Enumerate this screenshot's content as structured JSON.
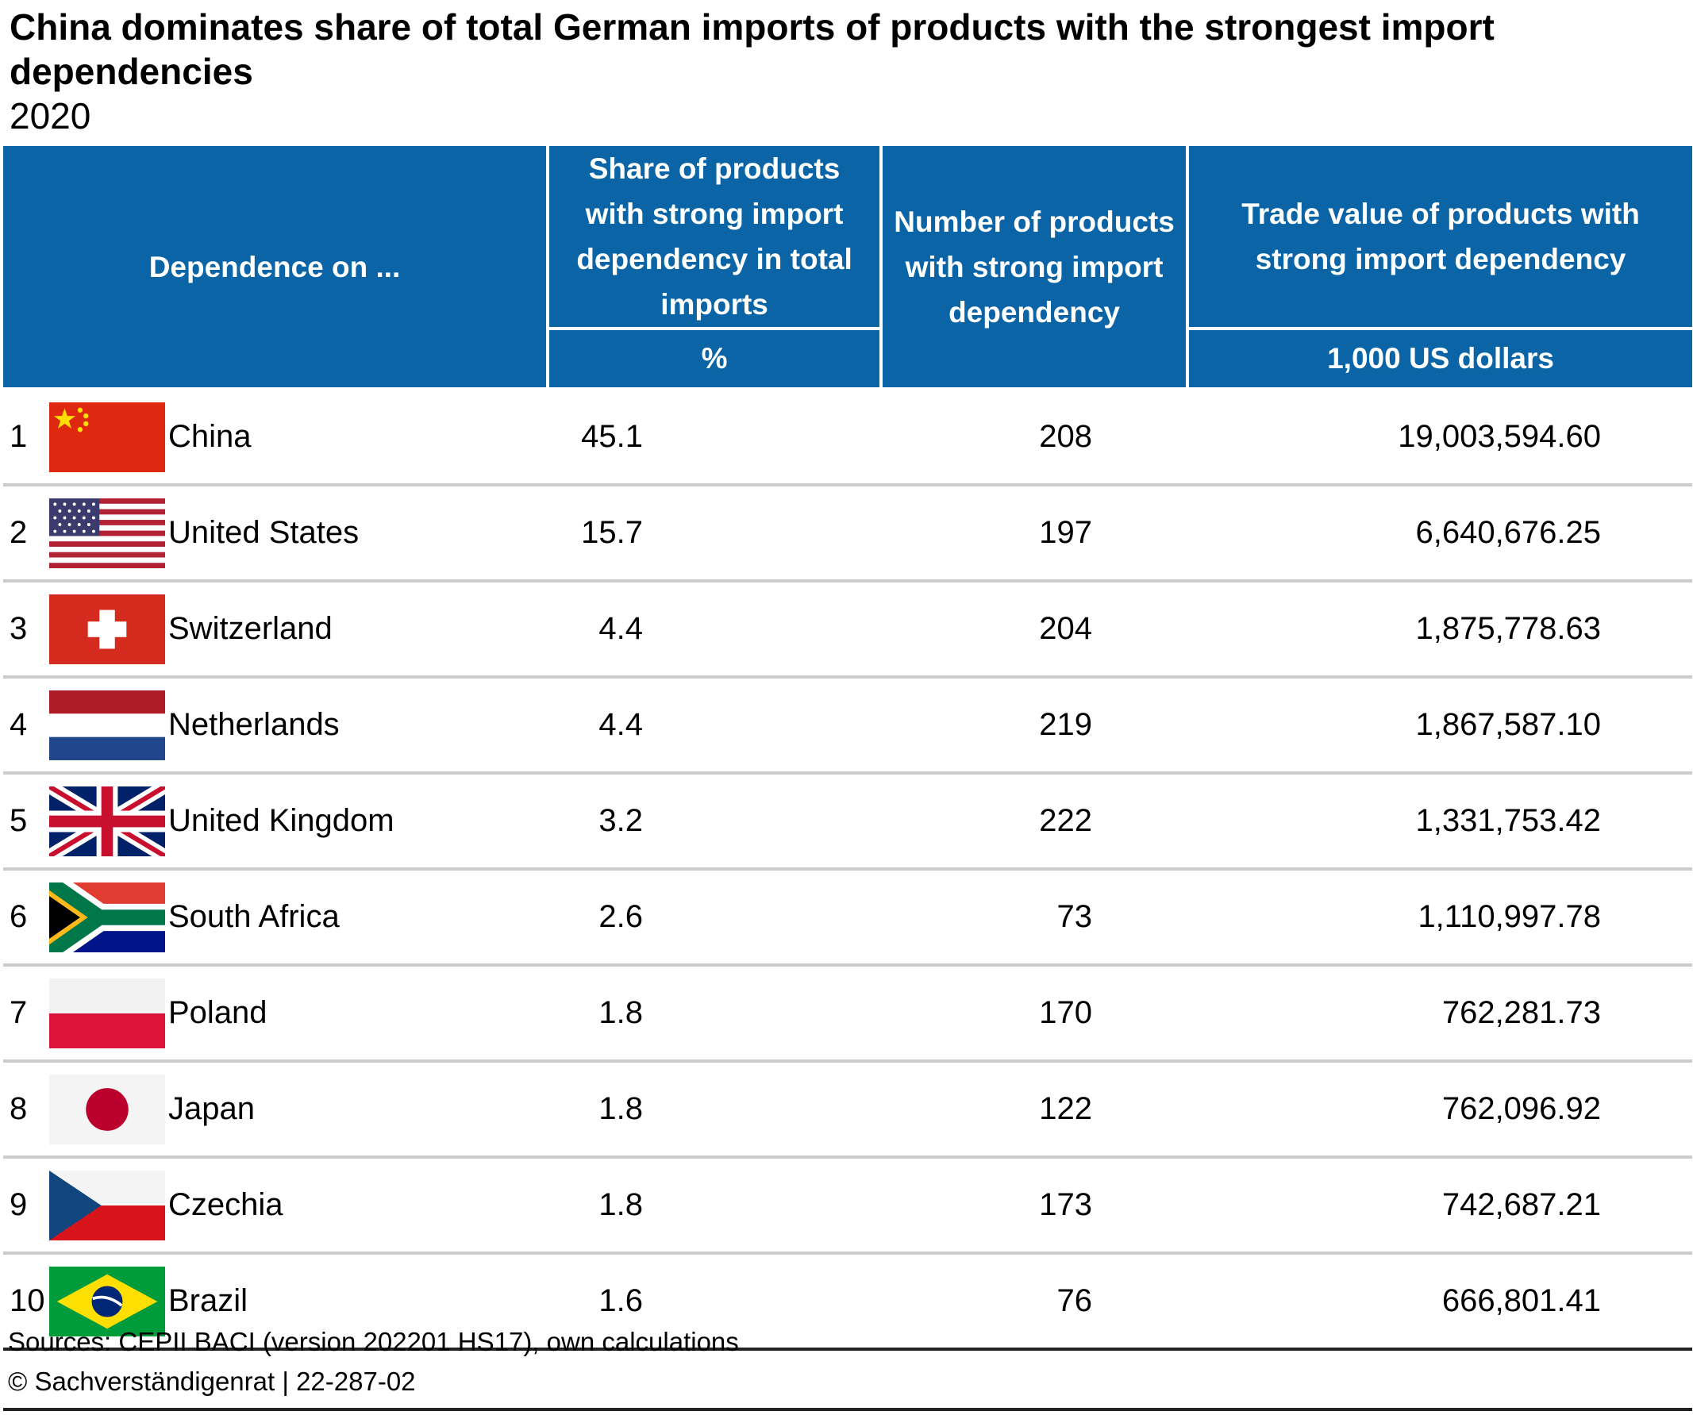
{
  "title": "China dominates share of total German imports of products with the strongest import dependencies",
  "subtitle": "2020",
  "headers": {
    "dependence": "Dependence on ...",
    "share": "Share of products with strong import dependency in total imports",
    "share_unit": "%",
    "count": "Number of products with strong import dependency",
    "value": "Trade value of products with strong import dependency",
    "value_unit": "1,000 US dollars"
  },
  "chart_data": {
    "type": "table",
    "title": "China dominates share of total German imports of products with the strongest import dependencies",
    "subtitle": "2020",
    "columns": [
      "Dependence on ...",
      "Share of products with strong import dependency in total imports (%)",
      "Number of products with strong import dependency",
      "Trade value of products with strong import dependency (1,000 US dollars)"
    ],
    "rows": [
      {
        "rank": "1",
        "country": "China",
        "flag": "flag-china",
        "share": "45.1",
        "count": "208",
        "value": "19,003,594.60"
      },
      {
        "rank": "2",
        "country": "United States",
        "flag": "flag-united-states",
        "share": "15.7",
        "count": "197",
        "value": "6,640,676.25"
      },
      {
        "rank": "3",
        "country": "Switzerland",
        "flag": "flag-switzerland",
        "share": "4.4",
        "count": "204",
        "value": "1,875,778.63"
      },
      {
        "rank": "4",
        "country": "Netherlands",
        "flag": "flag-netherlands",
        "share": "4.4",
        "count": "219",
        "value": "1,867,587.10"
      },
      {
        "rank": "5",
        "country": "United Kingdom",
        "flag": "flag-united-kingdom",
        "share": "3.2",
        "count": "222",
        "value": "1,331,753.42"
      },
      {
        "rank": "6",
        "country": "South Africa",
        "flag": "flag-south-africa",
        "share": "2.6",
        "count": "73",
        "value": "1,110,997.78"
      },
      {
        "rank": "7",
        "country": "Poland",
        "flag": "flag-poland",
        "share": "1.8",
        "count": "170",
        "value": "762,281.73"
      },
      {
        "rank": "8",
        "country": "Japan",
        "flag": "flag-japan",
        "share": "1.8",
        "count": "122",
        "value": "762,096.92"
      },
      {
        "rank": "9",
        "country": "Czechia",
        "flag": "flag-czechia",
        "share": "1.8",
        "count": "173",
        "value": "742,687.21"
      },
      {
        "rank": "10",
        "country": "Brazil",
        "flag": "flag-brazil",
        "share": "1.6",
        "count": "76",
        "value": "666,801.41"
      }
    ]
  },
  "footer": {
    "source": "Sources: CEPII BACI (version 202201 HS17), own calculations",
    "copyright": "© Sachverständigenrat | 22-287-02"
  },
  "colors": {
    "header_bg": "#0a64a6",
    "header_text": "#ffffff",
    "row_divider": "#cccccc"
  }
}
